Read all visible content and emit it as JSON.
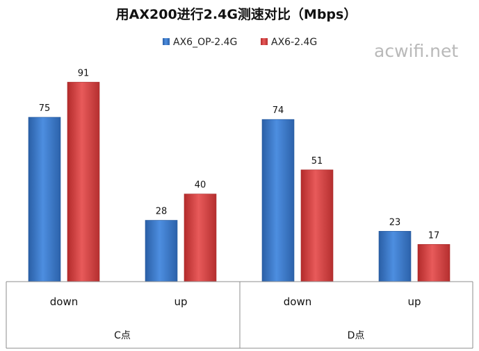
{
  "chart_data": {
    "type": "bar",
    "title": "用AX200进行2.4G测速对比（Mbps）",
    "watermark": "acwifi.net",
    "groups": [
      {
        "label": "C点",
        "categories": [
          "down",
          "up"
        ]
      },
      {
        "label": "D点",
        "categories": [
          "down",
          "up"
        ]
      }
    ],
    "categories": [
      "down",
      "up",
      "down",
      "up"
    ],
    "series": [
      {
        "name": "AX6_OP-2.4G",
        "color": "#3a78c4",
        "values": [
          75,
          28,
          74,
          23
        ]
      },
      {
        "name": "AX6-2.4G",
        "color": "#d43b3b",
        "values": [
          91,
          40,
          51,
          17
        ]
      }
    ],
    "ylim": [
      0,
      100
    ],
    "grid": false,
    "legend": "top-center"
  }
}
